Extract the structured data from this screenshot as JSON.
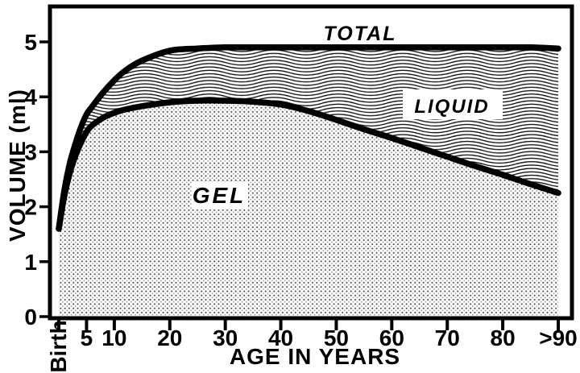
{
  "figure": {
    "background": "#ffffff",
    "ink": "#000000"
  },
  "chart_data": {
    "type": "area",
    "title": "",
    "xlabel": "AGE IN YEARS",
    "ylabel": "VOLUME (ml)",
    "xlim": [
      0,
      90
    ],
    "ylim": [
      0,
      5
    ],
    "grid": false,
    "legend": "inline-region-labels",
    "x_ticks": [
      {
        "value": 0,
        "label": "Birth",
        "rotated": true
      },
      {
        "value": 5,
        "label": "5"
      },
      {
        "value": 10,
        "label": "10"
      },
      {
        "value": 20,
        "label": "20"
      },
      {
        "value": 30,
        "label": "30"
      },
      {
        "value": 40,
        "label": "40"
      },
      {
        "value": 50,
        "label": "50"
      },
      {
        "value": 60,
        "label": "60"
      },
      {
        "value": 70,
        "label": "70"
      },
      {
        "value": 80,
        "label": "80"
      },
      {
        "value": 90,
        "label": ">90"
      }
    ],
    "y_ticks": [
      {
        "value": 0,
        "label": "0"
      },
      {
        "value": 1,
        "label": "1"
      },
      {
        "value": 2,
        "label": "2"
      },
      {
        "value": 3,
        "label": "3"
      },
      {
        "value": 4,
        "label": "4"
      },
      {
        "value": 5,
        "label": "5"
      }
    ],
    "x": [
      0,
      1,
      2,
      3,
      4,
      5,
      6,
      8,
      10,
      12,
      15,
      20,
      25,
      30,
      35,
      40,
      45,
      50,
      55,
      60,
      65,
      70,
      75,
      80,
      85,
      90
    ],
    "series": [
      {
        "name": "TOTAL",
        "values": [
          1.6,
          2.3,
          2.8,
          3.15,
          3.45,
          3.68,
          3.82,
          4.08,
          4.3,
          4.48,
          4.66,
          4.84,
          4.88,
          4.9,
          4.9,
          4.9,
          4.9,
          4.9,
          4.9,
          4.9,
          4.9,
          4.9,
          4.9,
          4.9,
          4.9,
          4.88
        ]
      },
      {
        "name": "GEL",
        "values": [
          1.6,
          2.2,
          2.62,
          2.93,
          3.17,
          3.36,
          3.48,
          3.62,
          3.71,
          3.77,
          3.83,
          3.9,
          3.93,
          3.93,
          3.91,
          3.86,
          3.74,
          3.58,
          3.41,
          3.25,
          3.08,
          2.91,
          2.74,
          2.58,
          2.41,
          2.25
        ]
      },
      {
        "name": "LIQUID",
        "values": [
          0,
          0.1,
          0.18,
          0.22,
          0.28,
          0.32,
          0.34,
          0.46,
          0.59,
          0.71,
          0.83,
          0.94,
          0.95,
          0.97,
          0.99,
          1.04,
          1.16,
          1.32,
          1.49,
          1.65,
          1.82,
          1.99,
          2.16,
          2.32,
          2.49,
          2.63
        ]
      }
    ]
  }
}
